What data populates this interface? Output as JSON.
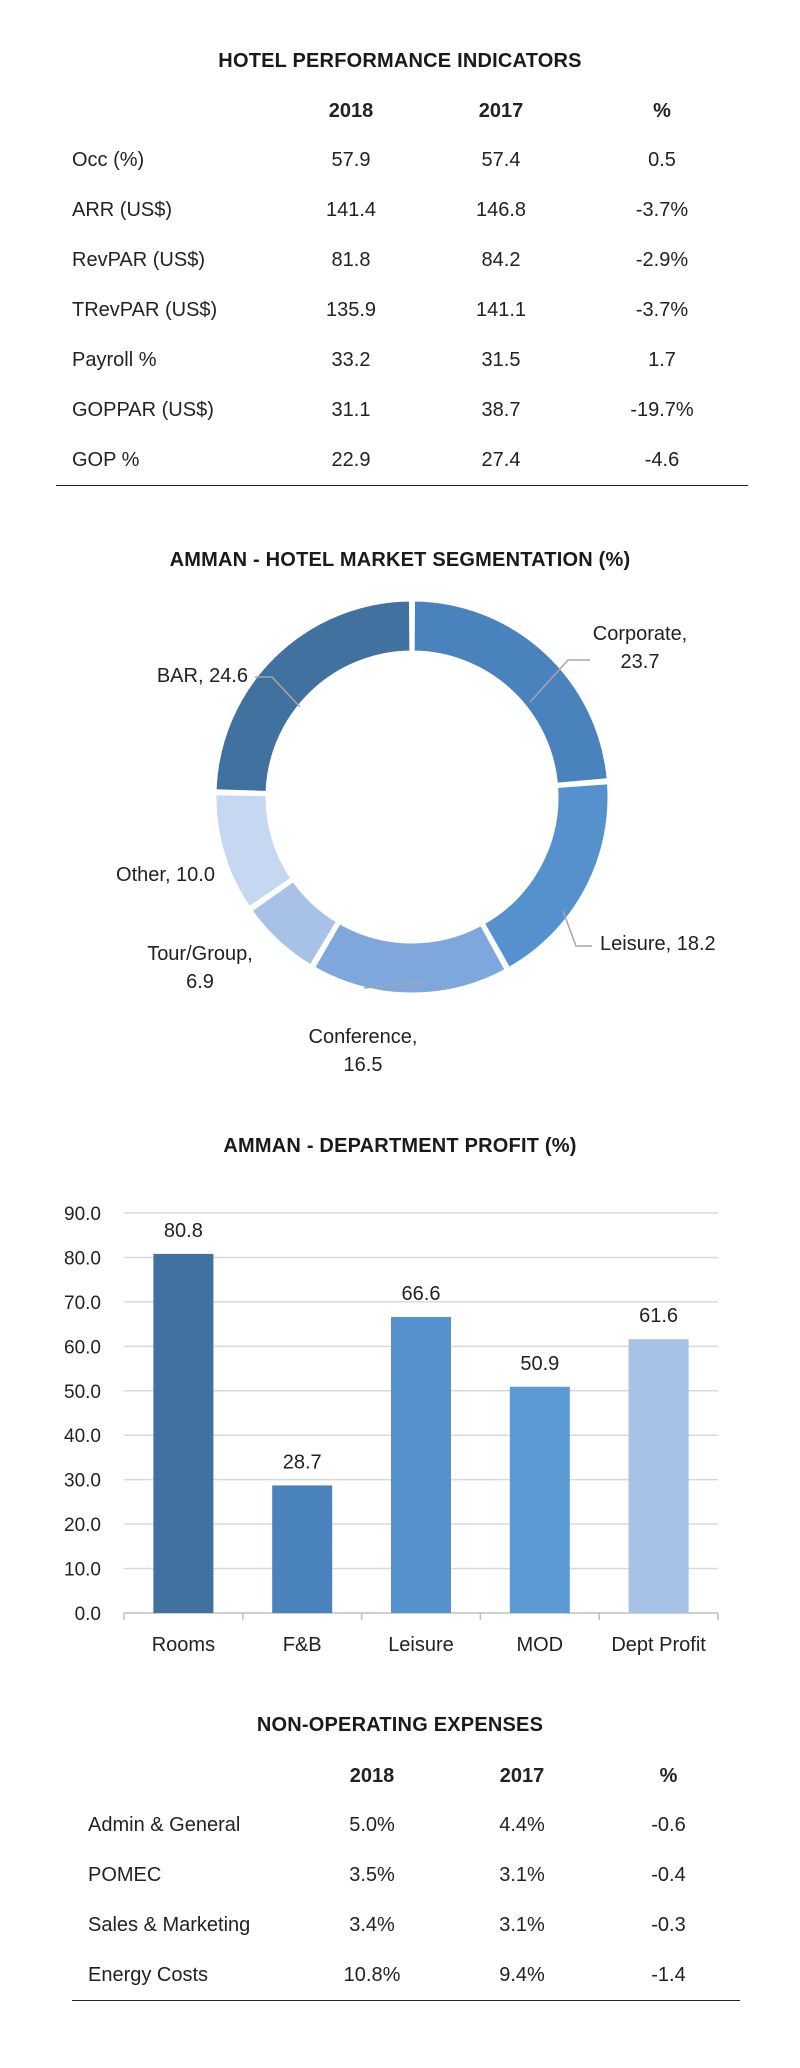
{
  "performance": {
    "title": "HOTEL PERFORMANCE INDICATORS",
    "headers": [
      "",
      "2018",
      "2017",
      "%"
    ],
    "rows": [
      [
        "Occ (%)",
        "57.9",
        "57.4",
        "0.5"
      ],
      [
        "ARR (US$)",
        "141.4",
        "146.8",
        "-3.7%"
      ],
      [
        "RevPAR (US$)",
        "81.8",
        "84.2",
        "-2.9%"
      ],
      [
        "TRevPAR (US$)",
        "135.9",
        "141.1",
        "-3.7%"
      ],
      [
        "Payroll %",
        "33.2",
        "31.5",
        "1.7"
      ],
      [
        "GOPPAR (US$)",
        "31.1",
        "38.7",
        "-19.7%"
      ],
      [
        "GOP %",
        "22.9",
        "27.4",
        "-4.6"
      ]
    ]
  },
  "chart_data": [
    {
      "type": "pie",
      "style": "donut",
      "title": "AMMAN - HOTEL MARKET SEGMENTATION (%)",
      "categories": [
        "Corporate",
        "Leisure",
        "Conference",
        "Tour/Group",
        "Other",
        "BAR"
      ],
      "values": [
        23.7,
        18.2,
        16.5,
        6.9,
        10.0,
        24.6
      ],
      "value_labels": [
        "23.7",
        "18.2",
        "16.5",
        "6.9",
        "10.0",
        "24.6"
      ],
      "colors": [
        "#4a82bd",
        "#5591cd",
        "#7ea7de",
        "#a8c2e7",
        "#c5d7f1",
        "#41729f"
      ]
    },
    {
      "type": "bar",
      "title": "AMMAN - DEPARTMENT PROFIT (%)",
      "categories": [
        "Rooms",
        "F&B",
        "Leisure",
        "MOD",
        "Dept Profit"
      ],
      "values": [
        80.8,
        28.7,
        66.6,
        50.9,
        61.6
      ],
      "value_labels": [
        "80.8",
        "28.7",
        "66.6",
        "50.9",
        "61.6"
      ],
      "colors": [
        "#41729f",
        "#4a82bd",
        "#5591cd",
        "#5b9bd5",
        "#a6c2e7"
      ],
      "ylim": [
        0,
        90
      ],
      "yticks": [
        "0.0",
        "10.0",
        "20.0",
        "30.0",
        "40.0",
        "50.0",
        "60.0",
        "70.0",
        "80.0",
        "90.0"
      ],
      "grid": true
    }
  ],
  "non_operating": {
    "title": "NON-OPERATING EXPENSES",
    "headers": [
      "",
      "2018",
      "2017",
      "%"
    ],
    "rows": [
      [
        "Admin & General",
        "5.0%",
        "4.4%",
        "-0.6"
      ],
      [
        "POMEC",
        "3.5%",
        "3.1%",
        "-0.4"
      ],
      [
        "Sales & Marketing",
        "3.4%",
        "3.1%",
        "-0.3"
      ],
      [
        "Energy Costs",
        "10.8%",
        "9.4%",
        "-1.4"
      ]
    ]
  }
}
